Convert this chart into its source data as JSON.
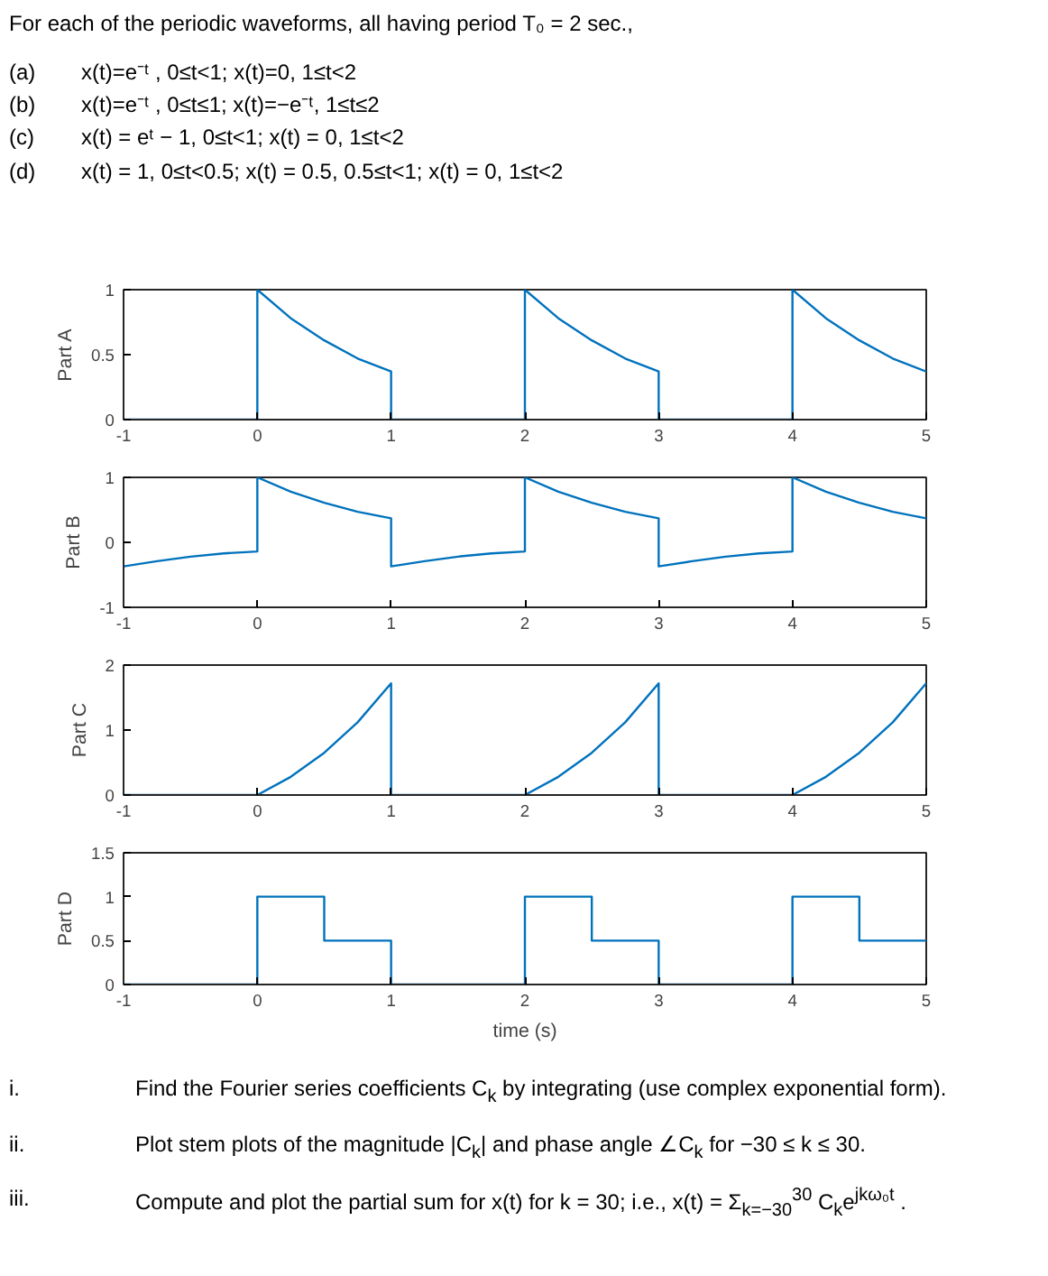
{
  "chart_data": [
    {
      "type": "line",
      "title": "For each of the periodic waveforms, all having period T₀ = 2 sec.,",
      "annotations": [
        "(a) x(t)=e⁻ᵗ , 0≤t<1; x(t)=0, 1≤t<2",
        "(b) x(t)=e⁻ᵗ , 0≤t≤1; x(t)=−e⁻ᵗ, 1≤t≤2",
        "(c) x(t) = eᵗ − 1, 0≤t<1; x(t) = 0, 1≤t<2",
        "(d) x(t) = 1, 0≤t<0.5; x(t) = 0.5, 0.5≤t<1; x(t) = 0, 1≤t<2"
      ],
      "ylabel": "Part A",
      "color": "#0072bd",
      "xlim": [
        -1,
        5
      ],
      "xticks": [
        -1,
        0,
        1,
        2,
        3,
        4,
        5
      ],
      "ylim": [
        0,
        1
      ],
      "yticks": [
        0,
        0.5,
        1
      ],
      "x": [
        -1,
        0,
        0,
        0.25,
        0.5,
        0.75,
        1,
        1,
        2,
        2,
        2.25,
        2.5,
        2.75,
        3,
        3,
        4,
        4,
        4.25,
        4.5,
        4.75,
        5
      ],
      "values": [
        0,
        0,
        1,
        0.78,
        0.61,
        0.47,
        0.37,
        0,
        0,
        1,
        0.78,
        0.61,
        0.47,
        0.37,
        0,
        0,
        1,
        0.78,
        0.61,
        0.47,
        0.37
      ]
    },
    {
      "type": "line",
      "ylabel": "Part B",
      "color": "#0072bd",
      "xlim": [
        -1,
        5
      ],
      "xticks": [
        -1,
        0,
        1,
        2,
        3,
        4,
        5
      ],
      "ylim": [
        -1,
        1
      ],
      "yticks": [
        -1,
        0,
        1
      ],
      "x": [
        -1,
        -0.75,
        -0.5,
        -0.25,
        0,
        0,
        0.25,
        0.5,
        0.75,
        1,
        1,
        1.25,
        1.5,
        1.75,
        2,
        2,
        2.25,
        2.5,
        2.75,
        3,
        3,
        3.25,
        3.5,
        3.75,
        4,
        4,
        4.25,
        4.5,
        4.75,
        5
      ],
      "values": [
        -0.37,
        -0.29,
        -0.22,
        -0.17,
        -0.14,
        1,
        0.78,
        0.61,
        0.47,
        0.37,
        -0.37,
        -0.29,
        -0.22,
        -0.17,
        -0.14,
        1,
        0.78,
        0.61,
        0.47,
        0.37,
        -0.37,
        -0.29,
        -0.22,
        -0.17,
        -0.14,
        1,
        0.78,
        0.61,
        0.47,
        0.37
      ]
    },
    {
      "type": "line",
      "ylabel": "Part C",
      "color": "#0072bd",
      "xlim": [
        -1,
        5
      ],
      "xticks": [
        -1,
        0,
        1,
        2,
        3,
        4,
        5
      ],
      "ylim": [
        0,
        2
      ],
      "yticks": [
        0,
        1,
        2
      ],
      "x": [
        -1,
        0,
        0.25,
        0.5,
        0.75,
        1,
        1,
        2,
        2.25,
        2.5,
        2.75,
        3,
        3,
        4,
        4.25,
        4.5,
        4.75,
        5
      ],
      "values": [
        0,
        0,
        0.28,
        0.65,
        1.12,
        1.72,
        0,
        0,
        0.28,
        0.65,
        1.12,
        1.72,
        0,
        0,
        0.28,
        0.65,
        1.12,
        1.72
      ]
    },
    {
      "type": "line",
      "ylabel": "Part D",
      "xlabel": "time (s)",
      "color": "#0072bd",
      "xlim": [
        -1,
        5
      ],
      "xticks": [
        -1,
        0,
        1,
        2,
        3,
        4,
        5
      ],
      "ylim": [
        0,
        1.5
      ],
      "yticks": [
        0,
        0.5,
        1,
        1.5
      ],
      "annotations": [
        "i. Find the Fourier series coefficients C$_{k}$ by integrating (use complex exponential form).",
        "ii. Plot stem plots of the magnitude |C$_{k}$| and phase angle ∠C$_{k}$ for −30 ≤ k ≤ 30.",
        "iii. Compute and plot the partial sum for x(t) for k = 30; i.e., x(t) = Σ$_{k=−30}$$^{30}$ C$_{k}$e$^{jkω₀t}$ ."
      ],
      "x": [
        -1,
        0,
        0,
        0.5,
        0.5,
        1,
        1,
        2,
        2,
        2.5,
        2.5,
        3,
        3,
        4,
        4,
        4.5,
        4.5,
        5
      ],
      "values": [
        0,
        0,
        1,
        1,
        0.5,
        0.5,
        0,
        0,
        1,
        1,
        0.5,
        0.5,
        0,
        0,
        1,
        1,
        0.5,
        0.5
      ]
    }
  ]
}
